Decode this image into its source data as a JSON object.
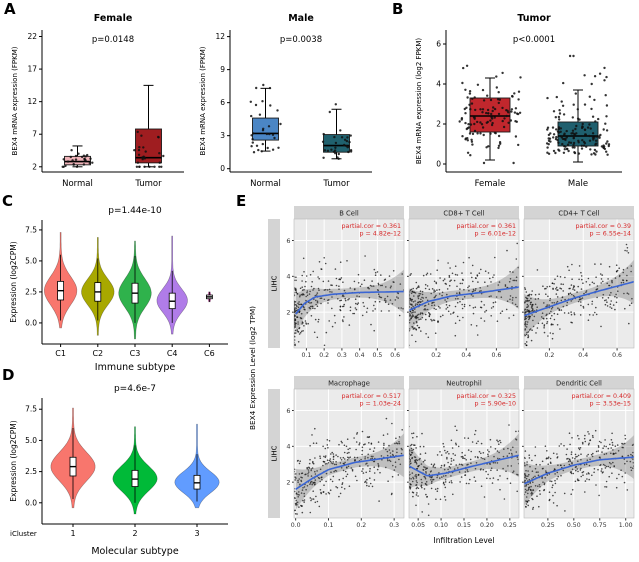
{
  "figure_labels": {
    "A": "A",
    "B": "B",
    "C": "C",
    "D": "D",
    "E": "E"
  },
  "chart_data": [
    {
      "id": "A-female",
      "type": "box",
      "title": "Female",
      "p_label": "p=0.0148",
      "ylabel": "BEX4 mRNA expression  (FPKM)",
      "yticks": [
        2,
        7,
        12,
        17,
        22
      ],
      "ylim": [
        1.2,
        23
      ],
      "groups": [
        {
          "name": "Normal",
          "color": "#efb3b9",
          "box": {
            "lo": 2.0,
            "q1": 2.3,
            "med": 2.8,
            "q3": 3.6,
            "hi": 5.2
          },
          "points": {
            "n": 26,
            "dist": "n",
            "mu": 2.9,
            "sigma": 0.75,
            "min": 2.0,
            "max": 5.4
          }
        },
        {
          "name": "Tumor",
          "color": "#9f1d20",
          "box": {
            "lo": 2.0,
            "q1": 2.6,
            "med": 3.4,
            "q3": 7.8,
            "hi": 14.5
          },
          "points": {
            "n": 27,
            "dist": "ln",
            "mu": 1.25,
            "sigma": 0.55,
            "min": 2.0,
            "max": 18.0
          }
        }
      ]
    },
    {
      "id": "A-male",
      "type": "box",
      "title": "Male",
      "p_label": "p=0.0038",
      "ylabel": "BEX4 mRNA expression  (FPKM)",
      "yticks": [
        0,
        3,
        6,
        9,
        12
      ],
      "ylim": [
        -0.3,
        12.6
      ],
      "groups": [
        {
          "name": "Normal",
          "color": "#4b86c5",
          "box": {
            "lo": 1.6,
            "q1": 2.6,
            "med": 3.2,
            "q3": 4.6,
            "hi": 7.3
          },
          "points": {
            "n": 31,
            "dist": "ln",
            "mu": 1.19,
            "sigma": 0.45,
            "min": 1.5,
            "max": 10.2
          }
        },
        {
          "name": "Tumor",
          "color": "#20616e",
          "box": {
            "lo": 0.9,
            "q1": 1.5,
            "med": 2.1,
            "q3": 3.1,
            "hi": 5.4
          },
          "points": {
            "n": 31,
            "dist": "ln",
            "mu": 0.74,
            "sigma": 0.5,
            "min": 0.9,
            "max": 6.6
          }
        }
      ]
    },
    {
      "id": "B",
      "type": "box",
      "title": "Tumor",
      "p_label": "p<0.0001",
      "ylabel": "BEX4 mRNA expression (log2 FPKM)",
      "yticks": [
        0,
        2,
        4,
        6
      ],
      "ylim": [
        -0.4,
        6.7
      ],
      "groups": [
        {
          "name": "Female",
          "color": "#c1272d",
          "box": {
            "lo": 0.2,
            "q1": 1.6,
            "med": 2.4,
            "q3": 3.3,
            "hi": 4.3
          },
          "points": {
            "n": 120,
            "dist": "n",
            "mu": 2.4,
            "sigma": 1.05,
            "min": 0.05,
            "max": 6.2
          }
        },
        {
          "name": "Male",
          "color": "#1f5f6e",
          "box": {
            "lo": 0.1,
            "q1": 0.9,
            "med": 1.4,
            "q3": 2.1,
            "hi": 3.7
          },
          "points": {
            "n": 160,
            "dist": "ln",
            "mu": 0.37,
            "sigma": 0.6,
            "min": 0.05,
            "max": 5.4
          }
        }
      ]
    },
    {
      "id": "C",
      "type": "violin",
      "p_label": "p=1.44e-10",
      "ylabel": "Expression (log2CPM)",
      "xlabel": "Immune subtype",
      "ytick_values": [
        0,
        2.5,
        5,
        7.5
      ],
      "ytick_labels": [
        "0.0",
        "2.5",
        "5.0",
        "7.5"
      ],
      "ylim": [
        -1.7,
        8.3
      ],
      "violins": [
        {
          "name": "C1",
          "color": "#F8766D",
          "mu": 2.6,
          "sigma": 1.15,
          "min": -0.4,
          "max": 7.3,
          "width": 0.85,
          "wlo": 0.2,
          "whi": 5.5,
          "box": {
            "q1": 1.85,
            "med": 2.6,
            "q3": 3.35
          }
        },
        {
          "name": "C2",
          "color": "#A8A800",
          "mu": 2.5,
          "sigma": 1.05,
          "min": -1.0,
          "max": 6.9,
          "width": 0.85,
          "wlo": 0.2,
          "whi": 5.2,
          "box": {
            "q1": 1.75,
            "med": 2.5,
            "q3": 3.25
          }
        },
        {
          "name": "C3",
          "color": "#2FB24C",
          "mu": 2.4,
          "sigma": 1.15,
          "min": -1.3,
          "max": 6.6,
          "width": 0.85,
          "wlo": 0.0,
          "whi": 5.4,
          "box": {
            "q1": 1.6,
            "med": 2.4,
            "q3": 3.2
          }
        },
        {
          "name": "C4",
          "color": "#B07CE8",
          "mu": 1.8,
          "sigma": 0.95,
          "min": -0.9,
          "max": 7.0,
          "width": 0.8,
          "wlo": 0.0,
          "whi": 4.2,
          "box": {
            "q1": 1.15,
            "med": 1.75,
            "q3": 2.4
          }
        },
        {
          "name": "C6",
          "color": "#E85FBF",
          "mu": 2.1,
          "sigma": 0.25,
          "min": 1.7,
          "max": 2.5,
          "width": 0.06,
          "wlo": 1.7,
          "whi": 2.5,
          "box": {
            "q1": 1.95,
            "med": 2.1,
            "q3": 2.25
          }
        }
      ]
    },
    {
      "id": "D",
      "type": "violin",
      "p_label": "p=4.6e-7",
      "ylabel": "Expression (log2CPM)",
      "xlabel": "Molecular subtype",
      "row_label": "iCluster",
      "ytick_values": [
        0,
        2.5,
        5,
        7.5
      ],
      "ytick_labels": [
        "0.0",
        "2.5",
        "5.0",
        "7.5"
      ],
      "ylim": [
        -1.7,
        8.4
      ],
      "violins": [
        {
          "name": "1",
          "color": "#F8766D",
          "mu": 2.9,
          "sigma": 1.15,
          "min": -0.4,
          "max": 7.6,
          "width": 0.7,
          "wlo": 0.3,
          "whi": 6.0,
          "box": {
            "q1": 2.15,
            "med": 2.9,
            "q3": 3.65
          }
        },
        {
          "name": "2",
          "color": "#00BA38",
          "mu": 1.95,
          "sigma": 1.0,
          "min": -0.9,
          "max": 6.1,
          "width": 0.7,
          "wlo": 0.0,
          "whi": 4.6,
          "box": {
            "q1": 1.3,
            "med": 1.9,
            "q3": 2.6
          }
        },
        {
          "name": "3",
          "color": "#619CFF",
          "mu": 1.65,
          "sigma": 0.85,
          "min": -0.4,
          "max": 6.3,
          "width": 0.7,
          "wlo": 0.1,
          "whi": 3.9,
          "box": {
            "q1": 1.1,
            "med": 1.6,
            "q3": 2.2
          }
        }
      ]
    },
    {
      "id": "E",
      "type": "scatter-grid",
      "ylabel": "BEX4 Expression Level (log2 TPM)",
      "xlabel": "Infiltration Level",
      "row_strip": "LIHC",
      "ytick_values": [
        2,
        4,
        6
      ],
      "ytick_labels": [
        "2",
        "4",
        "6"
      ],
      "ylim": [
        0,
        7.2
      ],
      "cells": [
        {
          "name": "B Cell",
          "cor_label": "partial.cor = 0.361",
          "p_label": "p = 4.82e-12",
          "xlim": [
            0.03,
            0.65
          ],
          "xtick_values": [
            0.1,
            0.2,
            0.3,
            0.4,
            0.5,
            0.6
          ],
          "xtick_labels": [
            "0.1",
            "0.2",
            "0.3",
            "0.4",
            "0.5",
            "0.6"
          ],
          "n_points": 350,
          "skew": 2.2,
          "curve": [
            [
              0.04,
              1.9
            ],
            [
              0.09,
              2.5
            ],
            [
              0.15,
              2.85
            ],
            [
              0.25,
              3.0
            ],
            [
              0.4,
              3.1
            ],
            [
              0.65,
              3.15
            ]
          ]
        },
        {
          "name": "CD8+ T Cell",
          "cor_label": "partial.cor = 0.361",
          "p_label": "p = 6.01e-12",
          "xlim": [
            0.02,
            0.75
          ],
          "xtick_values": [
            0.2,
            0.4,
            0.6
          ],
          "xtick_labels": [
            "0.2",
            "0.4",
            "0.6"
          ],
          "n_points": 350,
          "skew": 2.0,
          "curve": [
            [
              0.02,
              2.1
            ],
            [
              0.15,
              2.6
            ],
            [
              0.3,
              2.9
            ],
            [
              0.5,
              3.1
            ],
            [
              0.75,
              3.4
            ]
          ]
        },
        {
          "name": "CD4+ T Cell",
          "cor_label": "partial.cor = 0.39",
          "p_label": "p = 6.55e-14",
          "xlim": [
            0.05,
            0.7
          ],
          "xtick_values": [
            0.2,
            0.4,
            0.6
          ],
          "xtick_labels": [
            "0.2",
            "0.4",
            "0.6"
          ],
          "n_points": 350,
          "skew": 1.6,
          "curve": [
            [
              0.05,
              1.8
            ],
            [
              0.2,
              2.3
            ],
            [
              0.35,
              2.8
            ],
            [
              0.5,
              3.2
            ],
            [
              0.7,
              3.7
            ]
          ]
        },
        {
          "name": "Macrophage",
          "cor_label": "partial.cor = 0.517",
          "p_label": "p = 1.03e-24",
          "xlim": [
            -0.005,
            0.33
          ],
          "xtick_values": [
            0,
            0.1,
            0.2,
            0.3
          ],
          "xtick_labels": [
            "0.0",
            "0.1",
            "0.2",
            "0.3"
          ],
          "n_points": 350,
          "skew": 1.5,
          "curve": [
            [
              0.0,
              1.6
            ],
            [
              0.05,
              2.2
            ],
            [
              0.1,
              2.7
            ],
            [
              0.18,
              3.1
            ],
            [
              0.33,
              3.5
            ]
          ]
        },
        {
          "name": "Neutrophil",
          "cor_label": "partial.cor = 0.325",
          "p_label": "p = 5.90e-10",
          "xlim": [
            0.03,
            0.27
          ],
          "xtick_values": [
            0.05,
            0.1,
            0.15,
            0.2,
            0.25
          ],
          "xtick_labels": [
            "0.05",
            "0.10",
            "0.15",
            "0.20",
            "0.25"
          ],
          "n_points": 350,
          "skew": 1.8,
          "curve": [
            [
              0.03,
              2.9
            ],
            [
              0.07,
              2.35
            ],
            [
              0.11,
              2.5
            ],
            [
              0.17,
              2.9
            ],
            [
              0.27,
              3.5
            ]
          ]
        },
        {
          "name": "Dendritic Cell",
          "cor_label": "partial.cor = 0.409",
          "p_label": "p = 3.53e-15",
          "xlim": [
            0.02,
            1.08
          ],
          "xtick_values": [
            0.25,
            0.5,
            0.75,
            1
          ],
          "xtick_labels": [
            "0.25",
            "0.50",
            "0.75",
            "1.00"
          ],
          "n_points": 350,
          "skew": 1.5,
          "curve": [
            [
              0.02,
              1.9
            ],
            [
              0.25,
              2.5
            ],
            [
              0.5,
              2.95
            ],
            [
              0.75,
              3.25
            ],
            [
              1.08,
              3.4
            ]
          ]
        }
      ]
    }
  ],
  "colors": {
    "scatter_line": "#3b66d4",
    "annotation_red": "#d62728",
    "panel_bg": "#ebebeb",
    "strip_bg": "#d4d4d4"
  }
}
